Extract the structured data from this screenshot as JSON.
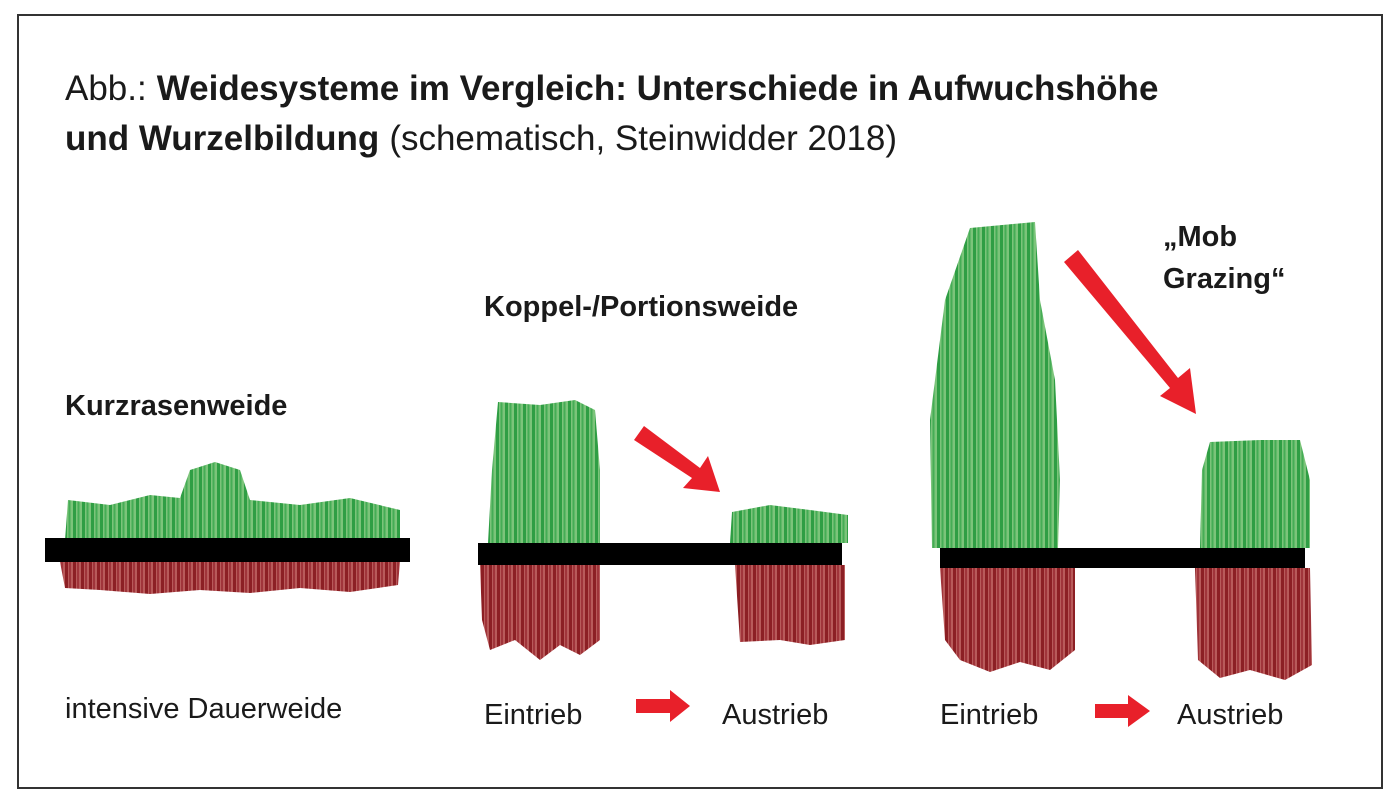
{
  "header": {
    "prefix": "Abb.:",
    "title": [
      "Weidesysteme im Vergleich: Unterschiede in Aufwuchshöhe",
      "und Wurzelbildung"
    ],
    "note": "(schematisch, Steinwidder 2018)"
  },
  "panels": [
    {
      "title": "Kurzrasenweide",
      "caption": "intensive Dauerweide"
    },
    {
      "title": "Koppel-/Portionsweide",
      "before": "Eintrieb",
      "after": "Austrieb"
    },
    {
      "title": [
        "„Mob",
        "Grazing“"
      ],
      "before": "Eintrieb",
      "after": "Austrieb"
    }
  ]
}
